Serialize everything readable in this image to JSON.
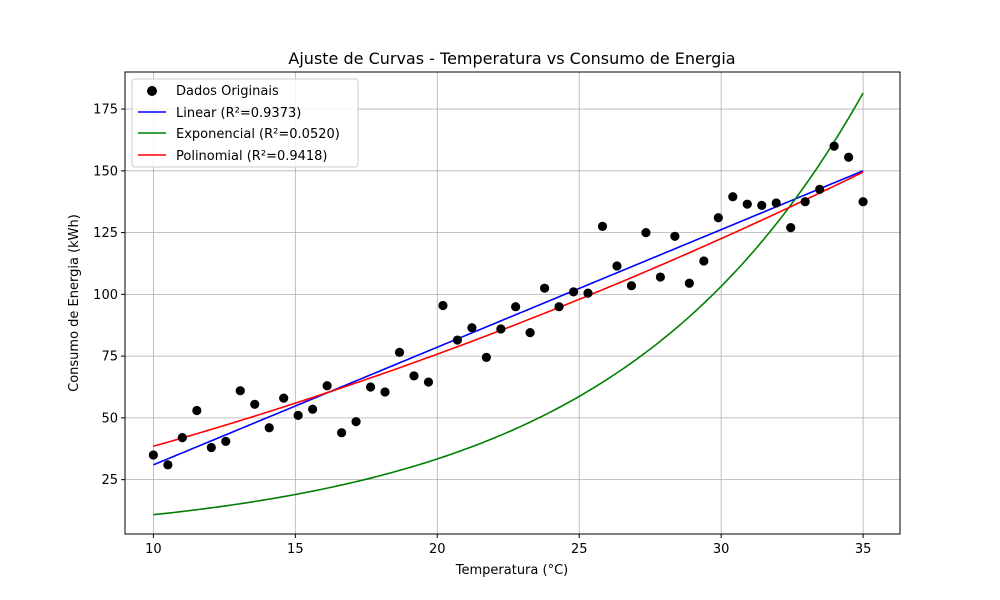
{
  "chart_data": {
    "type": "scatter",
    "title": "Ajuste de Curvas - Temperatura vs Consumo de Energia",
    "xlabel": "Temperatura (°C)",
    "ylabel": "Consumo de Energia (kWh)",
    "xlim": [
      9.0,
      36.3
    ],
    "ylim": [
      3,
      190
    ],
    "xticks": [
      10,
      15,
      20,
      25,
      30,
      35
    ],
    "yticks": [
      25,
      50,
      75,
      100,
      125,
      150,
      175
    ],
    "grid": true,
    "legend_position": "top-left",
    "scatter": {
      "name": "Dados Originais",
      "color": "#000000",
      "x": [
        10.0,
        10.51,
        11.02,
        11.53,
        12.04,
        12.55,
        13.06,
        13.57,
        14.08,
        14.59,
        15.1,
        15.61,
        16.12,
        16.63,
        17.14,
        17.65,
        18.16,
        18.67,
        19.18,
        19.69,
        20.2,
        20.71,
        21.22,
        21.73,
        22.24,
        22.76,
        23.27,
        23.78,
        24.29,
        24.8,
        25.31,
        25.82,
        26.33,
        26.84,
        27.35,
        27.86,
        28.37,
        28.88,
        29.39,
        29.9,
        30.41,
        30.92,
        31.43,
        31.94,
        32.45,
        32.96,
        33.47,
        33.98,
        34.49,
        35.0
      ],
      "y": [
        35,
        31,
        42,
        53,
        38,
        40.5,
        61,
        55.5,
        46,
        58,
        51,
        53.5,
        63,
        44,
        48.5,
        62.5,
        60.5,
        76.5,
        67,
        64.5,
        95.5,
        81.5,
        86.5,
        74.5,
        86,
        95,
        84.5,
        102.5,
        95,
        101,
        100.5,
        127.5,
        111.5,
        103.5,
        125,
        107,
        123.5,
        104.5,
        113.5,
        131,
        139.5,
        136.5,
        136,
        137,
        127,
        137.5,
        142.5,
        160,
        155.5,
        137.5
      ]
    },
    "series": [
      {
        "name": "Linear (R²=0.9373)",
        "color": "#0000ff",
        "type": "linear",
        "y_at_10": 31,
        "y_at_35": 150
      },
      {
        "name": "Exponencial (R²=0.0520)",
        "color": "#008000",
        "type": "exponential",
        "y_at_10": 10.8,
        "y_at_35": 181.5
      },
      {
        "name": "Polinomial (R²=0.9418)",
        "color": "#ff0000",
        "type": "quadratic",
        "y_at_10": 38.5,
        "y_at_22_5": 86.6,
        "y_at_35": 149.5
      }
    ]
  }
}
